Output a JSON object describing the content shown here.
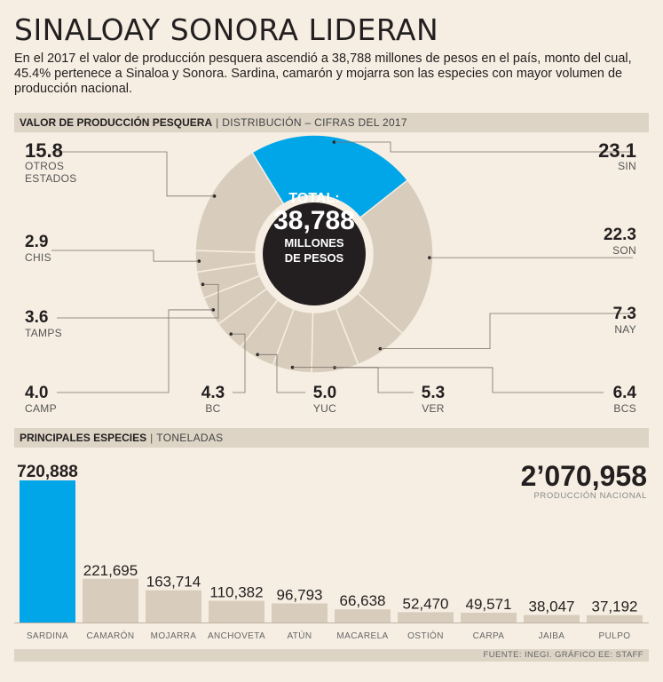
{
  "header": {
    "title": "SINALOAY SONORA LIDERAN",
    "subtitle": "En el 2017 el valor de producción pesquera ascendió a 38,788 millones de pesos en el país, monto del cual, 45.4% pertenece a Sinaloa y Sonora. Sardina, camarón y mojarra son las especies con mayor volumen de producción nacional."
  },
  "section1": {
    "bold": "VALOR DE PRODUCCIÓN PESQUERA",
    "sep": "|",
    "rest": "DISTRIBUCIÓN – CIFRAS DEL 2017"
  },
  "section2": {
    "bold": "PRINCIPALES ESPECIES",
    "sep": "|",
    "rest": "TONELADAS"
  },
  "center": {
    "line1": "TOTAL:",
    "line2": "38,788",
    "line3": "MILLONES",
    "line4": "DE PESOS"
  },
  "colors": {
    "highlight": "#00a6e8",
    "base": "#d8cdbd",
    "dark": "#231f20",
    "background": "#f6eee2"
  },
  "big_total": {
    "value": "2’070,958",
    "caption": "PRODUCCIÓN NACIONAL"
  },
  "footer": "FUENTE: INEGI. GRÁFICO EE: STAFF",
  "chart_data": [
    {
      "type": "pie",
      "title": "VALOR DE PRODUCCIÓN PESQUERA",
      "unit": "%",
      "slices": [
        {
          "key": "sin",
          "label": "SIN",
          "name": "SIN",
          "value": 23.1,
          "value_text": "23.1",
          "highlight": true
        },
        {
          "key": "son",
          "label": "SON",
          "name": "SON",
          "value": 22.3,
          "value_text": "22.3",
          "highlight": false
        },
        {
          "key": "nay",
          "label": "NAY",
          "name": "NAY",
          "value": 7.3,
          "value_text": "7.3",
          "highlight": false
        },
        {
          "key": "bcs",
          "label": "BCS",
          "name": "BCS",
          "value": 6.4,
          "value_text": "6.4",
          "highlight": false
        },
        {
          "key": "ver",
          "label": "VER",
          "name": "VER",
          "value": 5.3,
          "value_text": "5.3",
          "highlight": false
        },
        {
          "key": "yuc",
          "label": "YUC",
          "name": "YUC",
          "value": 5.0,
          "value_text": "5.0",
          "highlight": false
        },
        {
          "key": "bc",
          "label": "BC",
          "name": "BC",
          "value": 4.3,
          "value_text": "4.3",
          "highlight": false
        },
        {
          "key": "camp",
          "label": "CAMP",
          "name": "CAMP",
          "value": 4.0,
          "value_text": "4.0",
          "highlight": false
        },
        {
          "key": "tamps",
          "label": "TAMPS",
          "name": "TAMPS",
          "value": 3.6,
          "value_text": "3.6",
          "highlight": false
        },
        {
          "key": "chis",
          "label": "CHIS",
          "name": "CHIS",
          "value": 2.9,
          "value_text": "2.9",
          "highlight": false
        },
        {
          "key": "otros",
          "label": "OTROS\nESTADOS",
          "name": "OTROS ESTADOS",
          "value": 15.8,
          "value_text": "15.8",
          "highlight": false
        }
      ]
    },
    {
      "type": "bar",
      "title": "PRINCIPALES ESPECIES",
      "ylabel": "TONELADAS",
      "categories": [
        "SARDINA",
        "CAMARÓN",
        "MOJARRA",
        "ANCHOVETA",
        "ATÚN",
        "MACARELA",
        "OSTIÓN",
        "CARPA",
        "JAIBA",
        "PULPO"
      ],
      "values": [
        720888,
        221695,
        163714,
        110382,
        96793,
        66638,
        52470,
        49571,
        38047,
        37192
      ],
      "value_labels": [
        "720,888",
        "221,695",
        "163,714",
        "110,382",
        "96,793",
        "66,638",
        "52,470",
        "49,571",
        "38,047",
        "37,192"
      ],
      "highlight_index": 0
    }
  ]
}
